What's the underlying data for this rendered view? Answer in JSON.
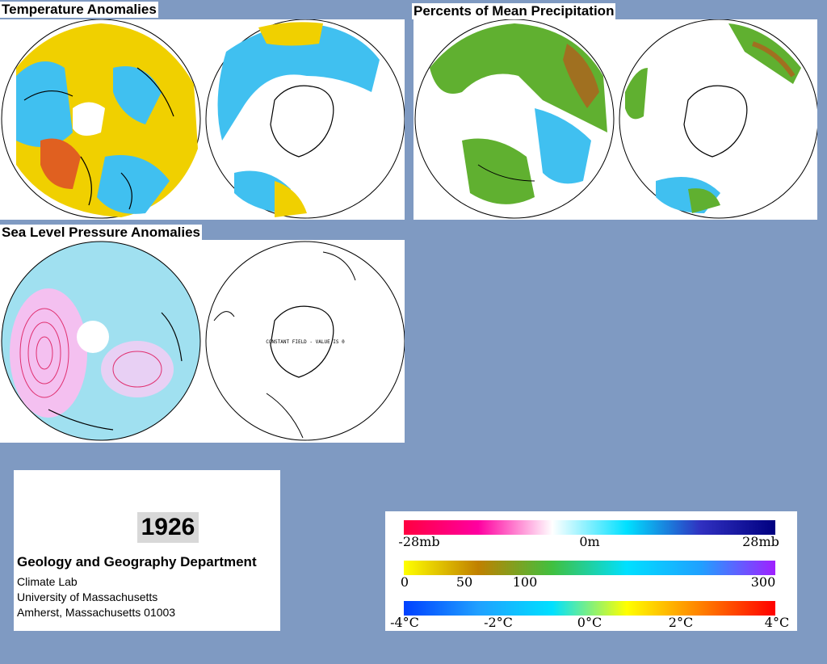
{
  "titles": {
    "temperature": "Temperature Anomalies",
    "precipitation": "Percents of Mean Precipitation",
    "pressure": "Sea Level Pressure Anomalies"
  },
  "maps": {
    "south_pressure_note": "CONSTANT FIELD - VALUE IS 0"
  },
  "info": {
    "year": "1926",
    "department": "Geology and Geography Department",
    "lab": "Climate Lab",
    "university": "University of Massachusetts",
    "address": "Amherst, Massachusetts 01003"
  },
  "legend": {
    "pressure": {
      "ticks": [
        "-28mb",
        "0m",
        "28mb"
      ],
      "colors": [
        "#ff0040",
        "#ff00a0",
        "#ffffff",
        "#00e0ff",
        "#3030c0",
        "#000080"
      ]
    },
    "precipitation": {
      "ticks": [
        "0",
        "50",
        "100",
        "300"
      ],
      "colors": [
        "#ffff00",
        "#c08000",
        "#40c040",
        "#00e0ff",
        "#20a0ff",
        "#a020ff"
      ]
    },
    "temperature": {
      "ticks": [
        "-4°C",
        "-2°C",
        "0°C",
        "2°C",
        "4°C"
      ],
      "colors": [
        "#0040ff",
        "#20a0ff",
        "#00e0ff",
        "#ffff00",
        "#ff8000",
        "#ff0000"
      ]
    }
  }
}
